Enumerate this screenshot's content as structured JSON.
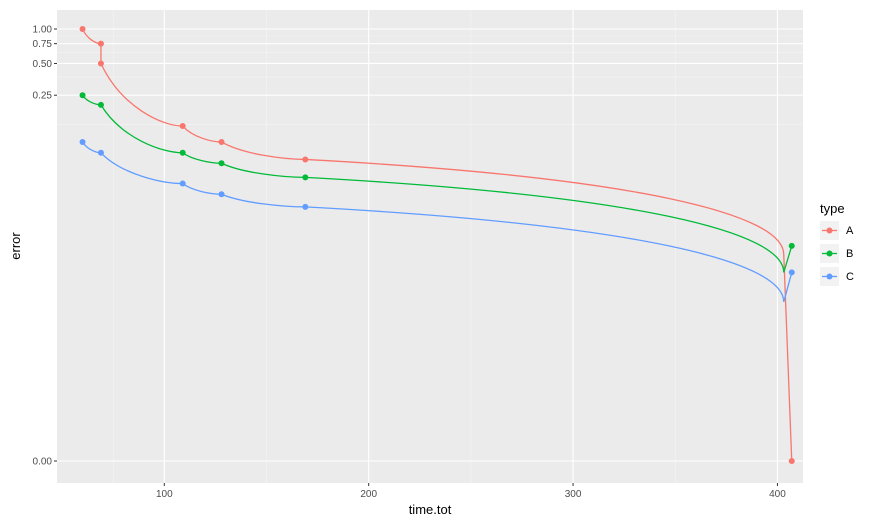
{
  "chart_data": {
    "type": "line",
    "title": "",
    "xlabel": "time.tot",
    "ylabel": "error",
    "xlim": [
      47.5,
      412.5
    ],
    "x_ticks": [
      100,
      200,
      300,
      400
    ],
    "x_tick_labels": [
      "100",
      "200",
      "300",
      "400"
    ],
    "y_ticks": [
      0.0,
      0.25,
      0.5,
      0.75,
      1.0
    ],
    "y_tick_labels": [
      "0.00",
      "0.25",
      "0.50",
      "0.75",
      "1.00"
    ],
    "y_scale": "compressed-nonlinear",
    "grid": true,
    "legend": {
      "title": "type",
      "position": "right"
    },
    "series": [
      {
        "name": "A",
        "color": "#F8766D",
        "points": [
          [
            60,
            1.0
          ],
          [
            69,
            0.75
          ],
          [
            69,
            0.5
          ],
          [
            109,
            0.12
          ],
          [
            128,
            0.08
          ],
          [
            169,
            0.05
          ],
          [
            407,
            0.0
          ]
        ]
      },
      {
        "name": "B",
        "color": "#00BA38",
        "points": [
          [
            60,
            0.25
          ],
          [
            69,
            0.2
          ],
          [
            109,
            0.06
          ],
          [
            128,
            0.045
          ],
          [
            169,
            0.03
          ],
          [
            407,
            0.003
          ]
        ]
      },
      {
        "name": "C",
        "color": "#619CFF",
        "points": [
          [
            60,
            0.08
          ],
          [
            69,
            0.06
          ],
          [
            109,
            0.025
          ],
          [
            128,
            0.018
          ],
          [
            169,
            0.012
          ],
          [
            407,
            0.001
          ]
        ]
      }
    ]
  }
}
